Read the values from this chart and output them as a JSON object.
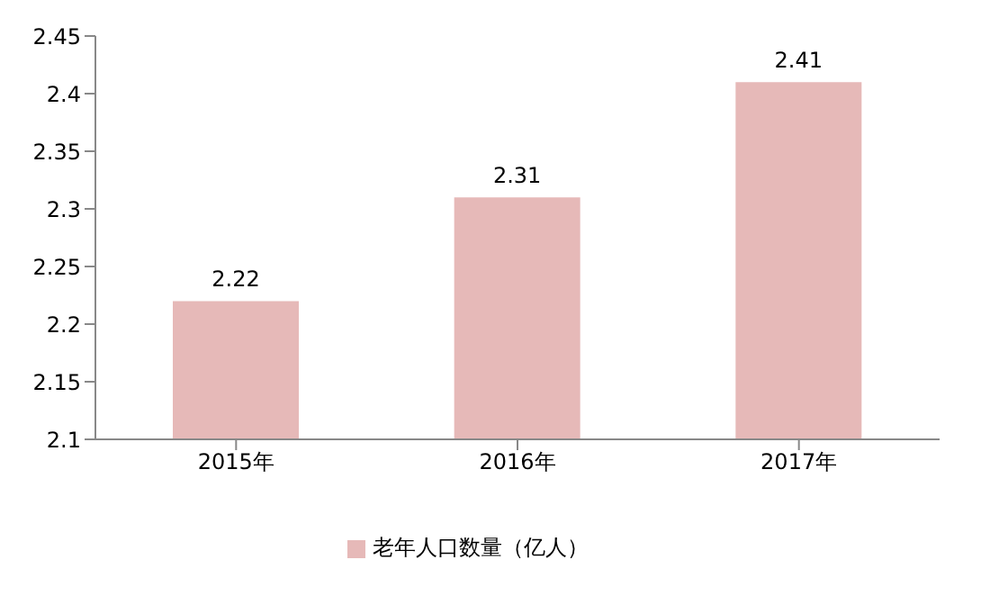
{
  "chart_data": {
    "type": "bar",
    "categories": [
      "2015年",
      "2016年",
      "2017年"
    ],
    "series": [
      {
        "name": "老年人口数量（亿人）",
        "color": "#e6b9b8",
        "values": [
          2.22,
          2.31,
          2.41
        ]
      }
    ],
    "ylim": [
      2.1,
      2.45
    ],
    "yticks": [
      2.1,
      2.15,
      2.2,
      2.25,
      2.3,
      2.35,
      2.4,
      2.45
    ],
    "data_labels": true,
    "legend": "bottom"
  }
}
